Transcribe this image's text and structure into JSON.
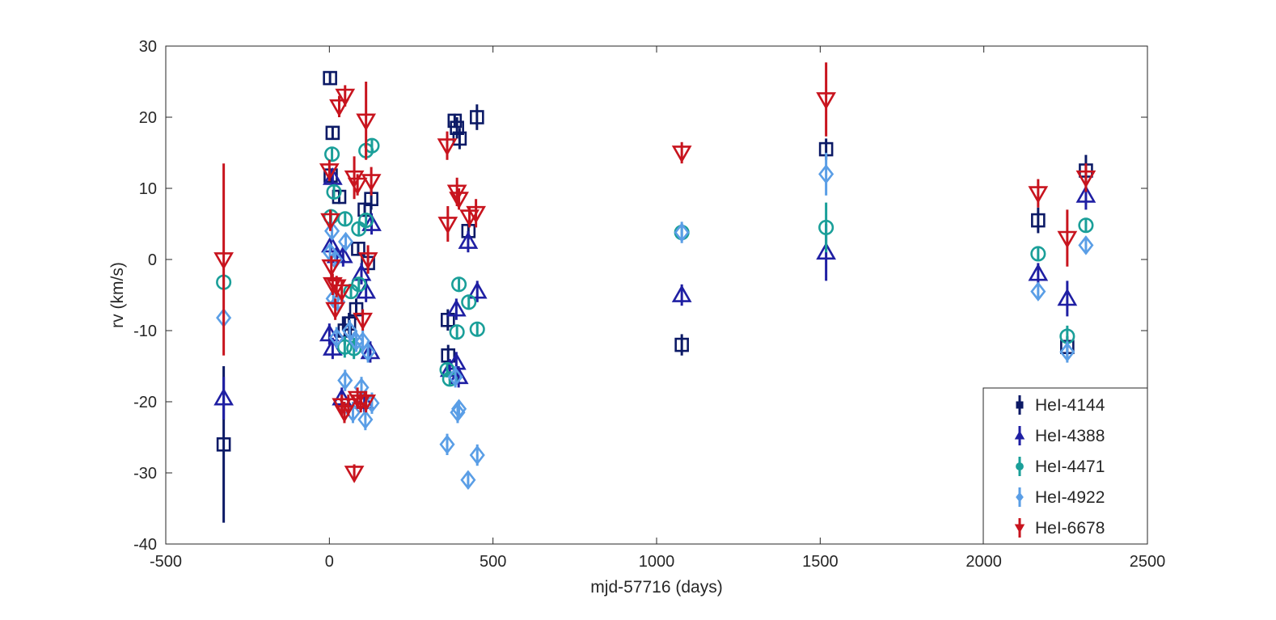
{
  "chart_data": {
    "type": "scatter",
    "title": "",
    "xlabel": "mjd-57716 (days)",
    "ylabel": "rv (km/s)",
    "xlim": [
      -500,
      2500
    ],
    "ylim": [
      -40,
      30
    ],
    "xticks": [
      -500,
      0,
      500,
      1000,
      1500,
      2000,
      2500
    ],
    "yticks": [
      -40,
      -30,
      -20,
      -10,
      0,
      10,
      20,
      30
    ],
    "xtick_labels": [
      "-500",
      "0",
      "500",
      "1000",
      "1500",
      "2000",
      "2500"
    ],
    "ytick_labels": [
      "-40",
      "-30",
      "-20",
      "-10",
      "0",
      "10",
      "20",
      "30"
    ],
    "grid": false,
    "legend_position": "bottom-right",
    "series": [
      {
        "name": "HeI-4144",
        "marker": "square",
        "color": "#0c1a66",
        "points": [
          {
            "x": -323,
            "y": -26,
            "err": 11
          },
          {
            "x": 2,
            "y": 25.5,
            "err": 0.8
          },
          {
            "x": 10,
            "y": 17.8,
            "err": 0.8
          },
          {
            "x": 4,
            "y": 11.8,
            "err": 1
          },
          {
            "x": 30,
            "y": 8.8,
            "err": 1
          },
          {
            "x": 108,
            "y": 7,
            "err": 1
          },
          {
            "x": 128,
            "y": 8.5,
            "err": 1.5
          },
          {
            "x": 88,
            "y": 1.5,
            "err": 1
          },
          {
            "x": 118,
            "y": -0.5,
            "err": 1.5
          },
          {
            "x": 82,
            "y": -7,
            "err": 1.5
          },
          {
            "x": 60,
            "y": -9,
            "err": 1.5
          },
          {
            "x": 47,
            "y": -10,
            "err": 2
          },
          {
            "x": 383,
            "y": 19.5,
            "err": 1
          },
          {
            "x": 390,
            "y": 18.5,
            "err": 1.5
          },
          {
            "x": 398,
            "y": 17,
            "err": 1.5
          },
          {
            "x": 451,
            "y": 20,
            "err": 1.8
          },
          {
            "x": 425,
            "y": 4,
            "err": 1.2
          },
          {
            "x": 362,
            "y": -8.5,
            "err": 1.5
          },
          {
            "x": 363,
            "y": -13.5,
            "err": 1.5
          },
          {
            "x": 1077,
            "y": -12,
            "err": 1.5
          },
          {
            "x": 1518,
            "y": 15.5,
            "err": 1.5
          },
          {
            "x": 2166,
            "y": 5.5,
            "err": 1.8
          },
          {
            "x": 2255,
            "y": -12.3,
            "err": 1.5
          },
          {
            "x": 2312,
            "y": 12.5,
            "err": 2.2
          }
        ]
      },
      {
        "name": "HeI-4388",
        "marker": "triangle-up",
        "color": "#1f1fa3",
        "points": [
          {
            "x": -323,
            "y": -19.5,
            "err": 3
          },
          {
            "x": 10,
            "y": 11.5,
            "err": 1
          },
          {
            "x": 5,
            "y": 2,
            "err": 1
          },
          {
            "x": 22,
            "y": 0.5,
            "err": 1
          },
          {
            "x": 42,
            "y": 0.5,
            "err": 1.5
          },
          {
            "x": 0,
            "y": -10.5,
            "err": 1.5
          },
          {
            "x": 10,
            "y": -12.5,
            "err": 1.5
          },
          {
            "x": 98,
            "y": -2,
            "err": 1.5
          },
          {
            "x": 112,
            "y": -4.5,
            "err": 1.5
          },
          {
            "x": 125,
            "y": -13,
            "err": 1.5
          },
          {
            "x": 129,
            "y": 5,
            "err": 1.5
          },
          {
            "x": 38,
            "y": -19.5,
            "err": 1.5
          },
          {
            "x": 107,
            "y": -20,
            "err": 1.5
          },
          {
            "x": 388,
            "y": -7,
            "err": 1.5
          },
          {
            "x": 452,
            "y": -4.5,
            "err": 1.5
          },
          {
            "x": 424,
            "y": 2.5,
            "err": 1.5
          },
          {
            "x": 368,
            "y": -15.5,
            "err": 1.5
          },
          {
            "x": 388,
            "y": -14.5,
            "err": 1.5
          },
          {
            "x": 395,
            "y": -16.5,
            "err": 1.5
          },
          {
            "x": 1077,
            "y": -5,
            "err": 1.5
          },
          {
            "x": 1518,
            "y": 1,
            "err": 4
          },
          {
            "x": 2166,
            "y": -2,
            "err": 1.5
          },
          {
            "x": 2255,
            "y": -5.5,
            "err": 2.5
          },
          {
            "x": 2312,
            "y": 9,
            "err": 2
          }
        ]
      },
      {
        "name": "HeI-4471",
        "marker": "circle",
        "color": "#1a9f99",
        "points": [
          {
            "x": -323,
            "y": -3.2,
            "err": 0.8
          },
          {
            "x": 8,
            "y": 14.8,
            "err": 1
          },
          {
            "x": 14,
            "y": 9.5,
            "err": 1
          },
          {
            "x": 5,
            "y": 6,
            "err": 1
          },
          {
            "x": 48,
            "y": 5.7,
            "err": 1
          },
          {
            "x": 90,
            "y": 4.3,
            "err": 1
          },
          {
            "x": 112,
            "y": 15.3,
            "err": 1.2
          },
          {
            "x": 130,
            "y": 16,
            "err": 1
          },
          {
            "x": 112,
            "y": 5.5,
            "err": 1
          },
          {
            "x": 66,
            "y": -4.5,
            "err": 1
          },
          {
            "x": 90,
            "y": -3.5,
            "err": 1
          },
          {
            "x": 47,
            "y": -12.3,
            "err": 1.5
          },
          {
            "x": 75,
            "y": -12.5,
            "err": 1.5
          },
          {
            "x": 396,
            "y": -3.5,
            "err": 0.8
          },
          {
            "x": 426,
            "y": -6,
            "err": 1
          },
          {
            "x": 390,
            "y": -10.2,
            "err": 1
          },
          {
            "x": 452,
            "y": -9.8,
            "err": 1
          },
          {
            "x": 360,
            "y": -15.5,
            "err": 1
          },
          {
            "x": 368,
            "y": -16.8,
            "err": 1
          },
          {
            "x": 1077,
            "y": 3.8,
            "err": 0.8
          },
          {
            "x": 1518,
            "y": 4.5,
            "err": 3.5
          },
          {
            "x": 2166,
            "y": 0.8,
            "err": 1
          },
          {
            "x": 2255,
            "y": -10.8,
            "err": 1.5
          },
          {
            "x": 2312,
            "y": 4.8,
            "err": 1
          }
        ]
      },
      {
        "name": "HeI-4922",
        "marker": "diamond",
        "color": "#5a9ee6",
        "points": [
          {
            "x": -323,
            "y": -8.2,
            "err": 1
          },
          {
            "x": 8,
            "y": 4,
            "err": 1
          },
          {
            "x": 50,
            "y": 2.5,
            "err": 1
          },
          {
            "x": 2,
            "y": 1,
            "err": 1
          },
          {
            "x": 18,
            "y": 0,
            "err": 1
          },
          {
            "x": 12,
            "y": -5.5,
            "err": 1
          },
          {
            "x": 26,
            "y": -6,
            "err": 1
          },
          {
            "x": 22,
            "y": -11,
            "err": 1.5
          },
          {
            "x": 62,
            "y": -10,
            "err": 1.5
          },
          {
            "x": 82,
            "y": -11.5,
            "err": 1.5
          },
          {
            "x": 102,
            "y": -11.5,
            "err": 1.5
          },
          {
            "x": 118,
            "y": -13,
            "err": 1.5
          },
          {
            "x": 48,
            "y": -17,
            "err": 1.5
          },
          {
            "x": 98,
            "y": -18,
            "err": 1.5
          },
          {
            "x": 72,
            "y": -21.5,
            "err": 1.5
          },
          {
            "x": 110,
            "y": -22.5,
            "err": 1.5
          },
          {
            "x": 130,
            "y": -20.2,
            "err": 1.5
          },
          {
            "x": 360,
            "y": -26,
            "err": 1.5
          },
          {
            "x": 392,
            "y": -21.5,
            "err": 1.5
          },
          {
            "x": 396,
            "y": -21,
            "err": 1.2
          },
          {
            "x": 424,
            "y": -31,
            "err": 1.2
          },
          {
            "x": 452,
            "y": -27.5,
            "err": 1.5
          },
          {
            "x": 385,
            "y": -16.5,
            "err": 1.5
          },
          {
            "x": 1077,
            "y": 3.8,
            "err": 1.5
          },
          {
            "x": 1518,
            "y": 12,
            "err": 3
          },
          {
            "x": 2166,
            "y": -4.5,
            "err": 1
          },
          {
            "x": 2255,
            "y": -13,
            "err": 1.5
          },
          {
            "x": 2312,
            "y": 2,
            "err": 1.2
          }
        ]
      },
      {
        "name": "HeI-6678",
        "marker": "triangle-down",
        "color": "#c8141e",
        "points": [
          {
            "x": -323,
            "y": 0,
            "err": 13.5
          },
          {
            "x": 0,
            "y": 12.5,
            "err": 1.5
          },
          {
            "x": 30,
            "y": 21.5,
            "err": 1.5
          },
          {
            "x": 48,
            "y": 23,
            "err": 1.5
          },
          {
            "x": 112,
            "y": 19.5,
            "err": 5.5
          },
          {
            "x": 128,
            "y": 11,
            "err": 2
          },
          {
            "x": 76,
            "y": 11.5,
            "err": 3
          },
          {
            "x": 86,
            "y": 10.5,
            "err": 1.5
          },
          {
            "x": 3,
            "y": 5.5,
            "err": 1.5
          },
          {
            "x": 118,
            "y": 0,
            "err": 2
          },
          {
            "x": 6,
            "y": -1,
            "err": 1.5
          },
          {
            "x": 10,
            "y": -3.5,
            "err": 1.5
          },
          {
            "x": 22,
            "y": -3.8,
            "err": 1.5
          },
          {
            "x": 38,
            "y": -4.5,
            "err": 1.5
          },
          {
            "x": 18,
            "y": -7,
            "err": 1.5
          },
          {
            "x": 102,
            "y": -8.5,
            "err": 1.5
          },
          {
            "x": 86,
            "y": -19.5,
            "err": 1.5
          },
          {
            "x": 96,
            "y": -20,
            "err": 1.5
          },
          {
            "x": 112,
            "y": -20,
            "err": 1.5
          },
          {
            "x": 38,
            "y": -20.5,
            "err": 1.5
          },
          {
            "x": 58,
            "y": -20.5,
            "err": 1.5
          },
          {
            "x": 46,
            "y": -21.5,
            "err": 1.5
          },
          {
            "x": 76,
            "y": -30,
            "err": 1.2
          },
          {
            "x": 360,
            "y": 16,
            "err": 2
          },
          {
            "x": 390,
            "y": 9.5,
            "err": 2
          },
          {
            "x": 396,
            "y": 8.5,
            "err": 1.5
          },
          {
            "x": 362,
            "y": 5,
            "err": 2.5
          },
          {
            "x": 428,
            "y": 6,
            "err": 1.5
          },
          {
            "x": 448,
            "y": 6.5,
            "err": 2
          },
          {
            "x": 1077,
            "y": 15,
            "err": 1.5
          },
          {
            "x": 1518,
            "y": 22.5,
            "err": 5.2
          },
          {
            "x": 2166,
            "y": 9.3,
            "err": 2
          },
          {
            "x": 2255,
            "y": 3,
            "err": 4
          },
          {
            "x": 2312,
            "y": 11.5,
            "err": 2
          }
        ]
      }
    ]
  }
}
